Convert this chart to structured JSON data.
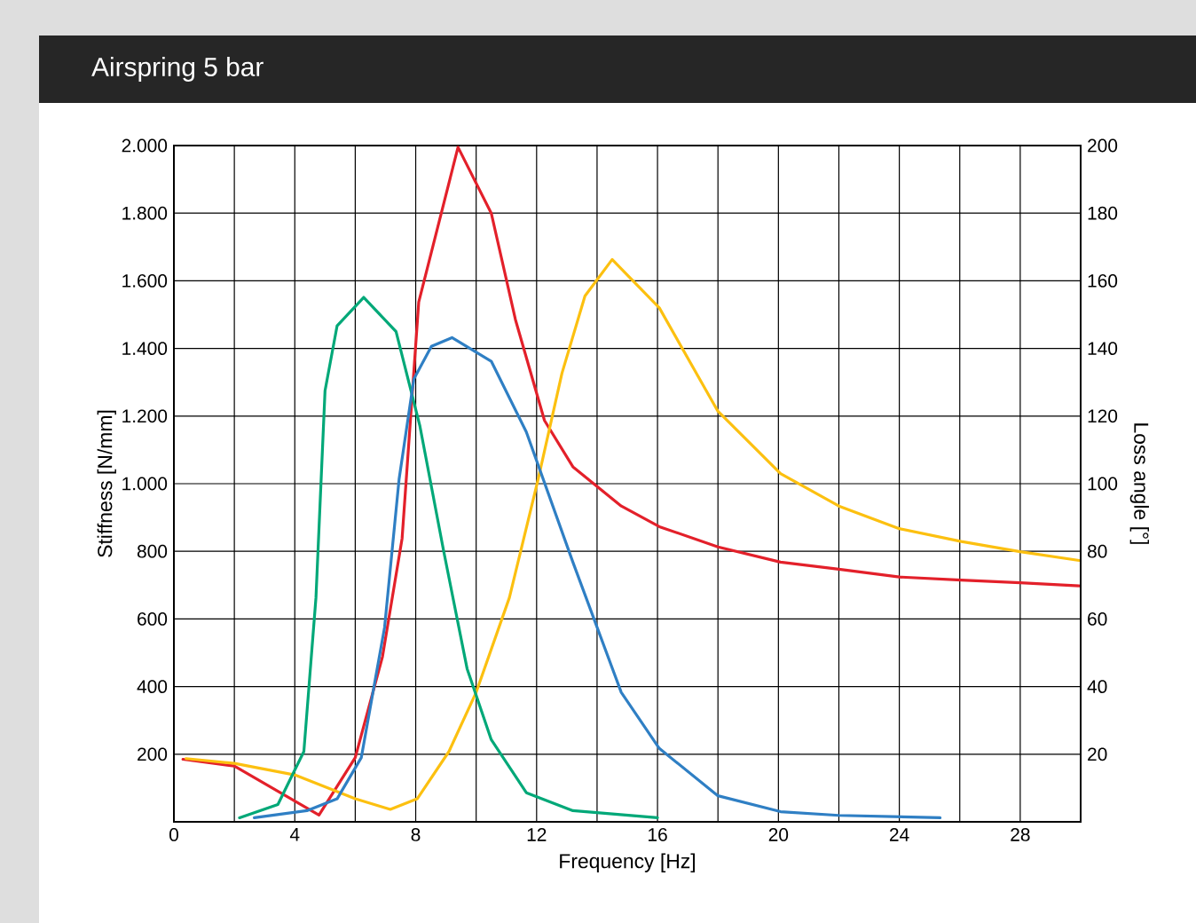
{
  "chart_data": {
    "type": "line",
    "title": "Airspring 5 bar",
    "xlabel": "Frequency [Hz]",
    "ylabel": "Stiffness [N/mm]",
    "y2label": "Loss angle [°]",
    "xlim": [
      0,
      30
    ],
    "xticks": [
      0,
      {
        "value": 2,
        "label": null
      },
      4,
      {
        "value": 6,
        "label": null
      },
      8,
      {
        "value": 10,
        "label": null
      },
      12,
      {
        "value": 14,
        "label": null
      },
      16,
      {
        "value": 18,
        "label": null
      },
      20,
      {
        "value": 22,
        "label": null
      },
      24,
      {
        "value": 26,
        "label": null
      },
      28
    ],
    "ylim": [
      0,
      2000
    ],
    "yticks": [
      200,
      {
        "value": 400,
        "label": "400"
      },
      {
        "value": 600,
        "label": "600"
      },
      {
        "value": 800,
        "label": "800"
      },
      {
        "value": 1000,
        "label": "1.000"
      },
      {
        "value": 1200,
        "label": "1.200"
      },
      {
        "value": 1400,
        "label": "1.400"
      },
      {
        "value": 1600,
        "label": "1.600"
      },
      {
        "value": 1800,
        "label": "1.800"
      },
      {
        "value": 2000,
        "label": "2.000"
      }
    ],
    "y2lim": [
      0,
      200
    ],
    "y2ticks": [
      20,
      40,
      60,
      80,
      100,
      120,
      140,
      160,
      180,
      200
    ],
    "grid": true,
    "series": [
      {
        "color": "#e3202a",
        "x": [
          0.3,
          2,
          4.8,
          6,
          6.9,
          7.55,
          8.1,
          9.4,
          10.5,
          11.3,
          12.26,
          13.2,
          14.8,
          16.06,
          18,
          20.07,
          22,
          24,
          26.05,
          28,
          29.95
        ],
        "values": [
          185,
          165,
          20,
          190,
          488,
          838,
          1537,
          1995,
          1800,
          1485,
          1187,
          1050,
          934,
          873,
          813,
          768,
          747,
          724,
          715,
          707,
          698
        ]
      },
      {
        "color": "#fcc010",
        "x": [
          0.4,
          2,
          4.03,
          6,
          7.16,
          8.05,
          9.1,
          10,
          11.1,
          12.05,
          12.84,
          13.6,
          14.5,
          16.06,
          18,
          20.07,
          22,
          24,
          26.05,
          28,
          29.95
        ],
        "values": [
          187,
          173,
          138,
          68,
          37,
          68,
          208,
          383,
          663,
          1013,
          1327,
          1555,
          1663,
          1520,
          1214,
          1030,
          934,
          867,
          829,
          799,
          773
        ]
      },
      {
        "color": "#00a878",
        "x": [
          2.17,
          3.44,
          4.3,
          4.7,
          5.0,
          5.4,
          6.28,
          7.35,
          8.14,
          8.92,
          9.7,
          10.5,
          11.66,
          13.2,
          16
        ],
        "values": [
          12,
          51,
          208,
          663,
          1275,
          1467,
          1551,
          1450,
          1170,
          803,
          453,
          243,
          86,
          33,
          12
        ]
      },
      {
        "color": "#2f7fc4",
        "x": [
          2.66,
          4.4,
          5.4,
          6.2,
          6.97,
          7.45,
          7.94,
          8.52,
          9.2,
          10.5,
          11.66,
          13.2,
          14.8,
          16.06,
          18,
          20.07,
          22,
          25.35
        ],
        "values": [
          12,
          33,
          68,
          190,
          575,
          1013,
          1310,
          1406,
          1432,
          1362,
          1153,
          768,
          383,
          217,
          77,
          30,
          19,
          12
        ]
      }
    ]
  }
}
